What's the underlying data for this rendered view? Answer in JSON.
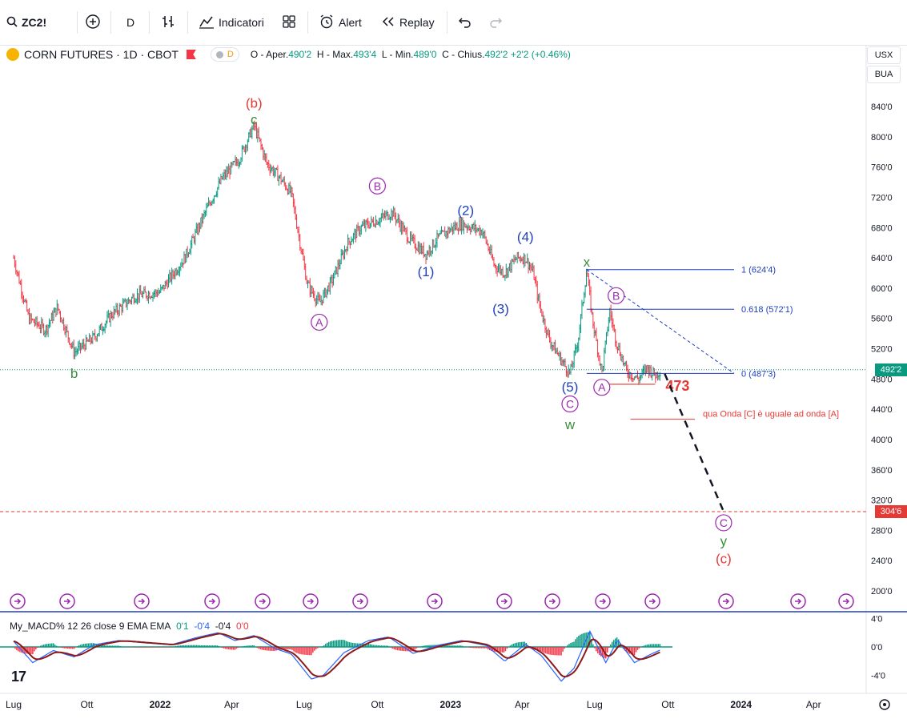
{
  "toolbar": {
    "symbol": "ZC2!",
    "interval": "D",
    "indicators_label": "Indicatori",
    "alert_label": "Alert",
    "replay_label": "Replay"
  },
  "legend": {
    "title": "CORN FUTURES · 1D · CBOT",
    "badge": "D",
    "open_label": "O - Aper.",
    "open": "490'2",
    "high_label": "H - Max.",
    "high": "493'4",
    "low_label": "L - Min.",
    "low": "489'0",
    "close_label": "C - Chius.",
    "close": "492'2",
    "change": "+2'2 (+0.46%)"
  },
  "axis_controls": {
    "currency": "USX",
    "unit": "BUA"
  },
  "price_tags": {
    "last": "492'2",
    "target": "304'6"
  },
  "colors": {
    "up": "#089981",
    "down": "#f23645",
    "blue_wave": "#1e3fbf",
    "purple_wave": "#9c27b0",
    "green_wave": "#388e3c",
    "red_wave": "#e53935"
  },
  "chart_data": {
    "type": "line",
    "title": "CORN FUTURES · 1D · CBOT",
    "ylim": [
      180,
      860
    ],
    "y_ticks": [
      "840'0",
      "800'0",
      "760'0",
      "720'0",
      "680'0",
      "640'0",
      "600'0",
      "560'0",
      "520'0",
      "480'0",
      "440'0",
      "400'0",
      "360'0",
      "320'0",
      "280'0",
      "240'0",
      "200'0"
    ],
    "y_tick_values": [
      840,
      800,
      760,
      720,
      680,
      640,
      600,
      560,
      520,
      480,
      440,
      400,
      360,
      320,
      280,
      240,
      200
    ],
    "x_labels": [
      "Lug",
      "Ott",
      "2022",
      "Apr",
      "Lug",
      "Ott",
      "2023",
      "Apr",
      "Lug",
      "Ott",
      "2024",
      "Apr"
    ],
    "x_label_dates": [
      "2021-07-01",
      "2021-10-01",
      "2022-01-01",
      "2022-04-01",
      "2022-07-01",
      "2022-10-01",
      "2023-01-01",
      "2023-04-01",
      "2023-07-01",
      "2023-10-01",
      "2024-01-01",
      "2024-04-01"
    ],
    "x_range": [
      "2021-07-01",
      "2024-05-15"
    ],
    "price_path": [
      {
        "x": "2021-07-01",
        "y": 640
      },
      {
        "x": "2021-07-20",
        "y": 560
      },
      {
        "x": "2021-08-10",
        "y": 545
      },
      {
        "x": "2021-08-25",
        "y": 575
      },
      {
        "x": "2021-09-15",
        "y": 515
      },
      {
        "x": "2021-10-10",
        "y": 535
      },
      {
        "x": "2021-11-01",
        "y": 565
      },
      {
        "x": "2021-12-01",
        "y": 590
      },
      {
        "x": "2022-01-01",
        "y": 595
      },
      {
        "x": "2022-02-01",
        "y": 640
      },
      {
        "x": "2022-03-01",
        "y": 705
      },
      {
        "x": "2022-03-20",
        "y": 745
      },
      {
        "x": "2022-04-10",
        "y": 770
      },
      {
        "x": "2022-04-29",
        "y": 815
      },
      {
        "x": "2022-05-15",
        "y": 765
      },
      {
        "x": "2022-06-01",
        "y": 745
      },
      {
        "x": "2022-06-15",
        "y": 725
      },
      {
        "x": "2022-07-05",
        "y": 605
      },
      {
        "x": "2022-07-20",
        "y": 580
      },
      {
        "x": "2022-08-05",
        "y": 610
      },
      {
        "x": "2022-08-25",
        "y": 660
      },
      {
        "x": "2022-09-10",
        "y": 680
      },
      {
        "x": "2022-10-01",
        "y": 690
      },
      {
        "x": "2022-10-20",
        "y": 700
      },
      {
        "x": "2022-11-10",
        "y": 665
      },
      {
        "x": "2022-12-01",
        "y": 645
      },
      {
        "x": "2022-12-15",
        "y": 665
      },
      {
        "x": "2023-01-01",
        "y": 678
      },
      {
        "x": "2023-01-15",
        "y": 685
      },
      {
        "x": "2023-02-10",
        "y": 675
      },
      {
        "x": "2023-02-25",
        "y": 630
      },
      {
        "x": "2023-03-10",
        "y": 620
      },
      {
        "x": "2023-03-25",
        "y": 640
      },
      {
        "x": "2023-04-05",
        "y": 640
      },
      {
        "x": "2023-04-15",
        "y": 620
      },
      {
        "x": "2023-04-22",
        "y": 580
      },
      {
        "x": "2023-05-05",
        "y": 532
      },
      {
        "x": "2023-05-20",
        "y": 505
      },
      {
        "x": "2023-05-31",
        "y": 487
      },
      {
        "x": "2023-06-10",
        "y": 530
      },
      {
        "x": "2023-06-21",
        "y": 624
      },
      {
        "x": "2023-06-28",
        "y": 560
      },
      {
        "x": "2023-07-10",
        "y": 488
      },
      {
        "x": "2023-07-20",
        "y": 570
      },
      {
        "x": "2023-07-28",
        "y": 530
      },
      {
        "x": "2023-08-10",
        "y": 490
      },
      {
        "x": "2023-08-25",
        "y": 480
      },
      {
        "x": "2023-09-05",
        "y": 495
      },
      {
        "x": "2023-09-15",
        "y": 485
      },
      {
        "x": "2023-09-22",
        "y": 492
      }
    ],
    "current_price": 492.25,
    "projection": [
      {
        "x": "2023-09-27",
        "y": 487
      },
      {
        "x": "2023-12-10",
        "y": 305
      }
    ],
    "target_level": {
      "y": 304.75,
      "label": "304'6"
    },
    "fibonacci": [
      {
        "ratio": "1",
        "label": "1 (624'4)",
        "y": 624.5
      },
      {
        "ratio": "0.618",
        "label": "0.618 (572'1)",
        "y": 572.1
      },
      {
        "ratio": "0",
        "label": "0 (487'3)",
        "y": 487.4
      }
    ],
    "level_473": {
      "y": 473,
      "label": "473"
    },
    "note": {
      "text": "qua Onda [C] è uguale ad onda [A]",
      "y": 430
    },
    "wave_labels": [
      {
        "text": "(b)",
        "x": "2022-04-29",
        "y": 845,
        "color": "red"
      },
      {
        "text": "c",
        "x": "2022-04-29",
        "y": 823,
        "color": "green"
      },
      {
        "text": "b",
        "x": "2021-09-15",
        "y": 488,
        "color": "green"
      },
      {
        "text": "A",
        "x": "2022-07-20",
        "y": 555,
        "color": "purple",
        "circle": true
      },
      {
        "text": "B",
        "x": "2022-10-01",
        "y": 735,
        "color": "purple",
        "circle": true
      },
      {
        "text": "(1)",
        "x": "2022-12-01",
        "y": 622,
        "color": "blue"
      },
      {
        "text": "(2)",
        "x": "2023-01-20",
        "y": 703,
        "color": "blue"
      },
      {
        "text": "(3)",
        "x": "2023-03-05",
        "y": 573,
        "color": "blue"
      },
      {
        "text": "(4)",
        "x": "2023-04-05",
        "y": 668,
        "color": "blue"
      },
      {
        "text": "x",
        "x": "2023-06-21",
        "y": 635,
        "color": "green"
      },
      {
        "text": "B",
        "x": "2023-07-28",
        "y": 590,
        "color": "purple",
        "circle": true
      },
      {
        "text": "(5)",
        "x": "2023-05-31",
        "y": 470,
        "color": "blue"
      },
      {
        "text": "C",
        "x": "2023-05-31",
        "y": 447,
        "color": "purple",
        "circle": true
      },
      {
        "text": "w",
        "x": "2023-05-31",
        "y": 420,
        "color": "green"
      },
      {
        "text": "A",
        "x": "2023-07-10",
        "y": 469,
        "color": "purple",
        "circle": true
      },
      {
        "text": "C",
        "x": "2023-12-10",
        "y": 290,
        "color": "purple",
        "circle": true
      },
      {
        "text": "y",
        "x": "2023-12-10",
        "y": 266,
        "color": "green"
      },
      {
        "text": "(c)",
        "x": "2023-12-10",
        "y": 243,
        "color": "red"
      }
    ],
    "macd": {
      "title": "My_MACD% 12 26 close 9 EMA EMA",
      "hist": "0'1",
      "macd": "-0'4",
      "signal": "-0'4",
      "extra": "0'0",
      "ylim": [
        -5.5,
        4.5
      ],
      "y_ticks": [
        "4'0",
        "0'0",
        "-4'0"
      ],
      "y_tick_values": [
        4,
        0,
        -4
      ],
      "line": [
        {
          "x": "2021-07-01",
          "y": 0.8
        },
        {
          "x": "2021-07-25",
          "y": -2.2
        },
        {
          "x": "2021-08-20",
          "y": -0.5
        },
        {
          "x": "2021-09-15",
          "y": -1.4
        },
        {
          "x": "2021-10-10",
          "y": 0.3
        },
        {
          "x": "2021-11-10",
          "y": 0.9
        },
        {
          "x": "2021-12-10",
          "y": 0.6
        },
        {
          "x": "2022-01-15",
          "y": 0.3
        },
        {
          "x": "2022-02-15",
          "y": 1.3
        },
        {
          "x": "2022-03-15",
          "y": 2.0
        },
        {
          "x": "2022-04-05",
          "y": 0.9
        },
        {
          "x": "2022-04-29",
          "y": 1.6
        },
        {
          "x": "2022-05-25",
          "y": -0.2
        },
        {
          "x": "2022-06-15",
          "y": -1.0
        },
        {
          "x": "2022-07-10",
          "y": -4.5
        },
        {
          "x": "2022-07-25",
          "y": -4.0
        },
        {
          "x": "2022-08-20",
          "y": -0.8
        },
        {
          "x": "2022-09-20",
          "y": 0.9
        },
        {
          "x": "2022-10-15",
          "y": 1.4
        },
        {
          "x": "2022-11-15",
          "y": -0.9
        },
        {
          "x": "2022-12-15",
          "y": 0.2
        },
        {
          "x": "2023-01-15",
          "y": 0.9
        },
        {
          "x": "2023-02-15",
          "y": 0.2
        },
        {
          "x": "2023-03-10",
          "y": -2.0
        },
        {
          "x": "2023-04-05",
          "y": 0.4
        },
        {
          "x": "2023-04-25",
          "y": -1.2
        },
        {
          "x": "2023-05-20",
          "y": -4.8
        },
        {
          "x": "2023-06-05",
          "y": -3.0
        },
        {
          "x": "2023-06-25",
          "y": 2.2
        },
        {
          "x": "2023-07-15",
          "y": -2.2
        },
        {
          "x": "2023-07-30",
          "y": 1.0
        },
        {
          "x": "2023-08-20",
          "y": -2.2
        },
        {
          "x": "2023-09-10",
          "y": -1.0
        },
        {
          "x": "2023-09-22",
          "y": -0.4
        }
      ]
    }
  }
}
